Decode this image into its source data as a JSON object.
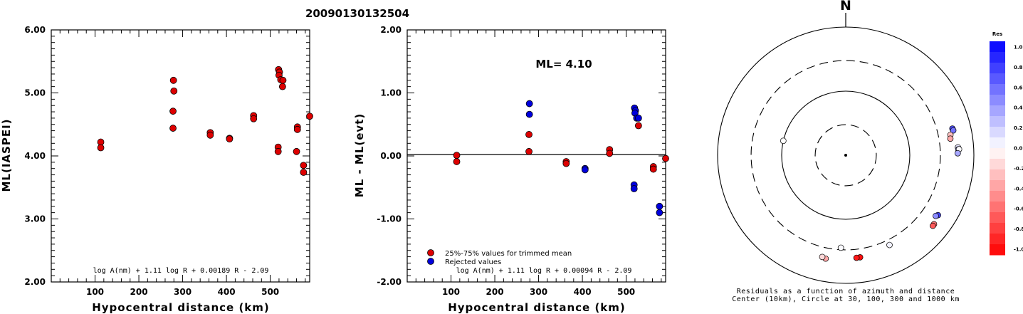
{
  "title": "20090130132504",
  "colors": {
    "red": "#dd0000",
    "blue": "#0000dd",
    "scale_top": "#0000ff",
    "scale_bottom": "#ff0000"
  },
  "chart_data": [
    {
      "type": "scatter",
      "ylabel": "ML(IASPEI)",
      "xlabel": "Hypocentral distance (km)",
      "formula": "log A(nm) + 1.11 log R + 0.00189 R - 2.09",
      "xlim": [
        0,
        590
      ],
      "ylim": [
        2.0,
        6.0
      ],
      "xticks": [
        "100",
        "200",
        "300",
        "400",
        "500"
      ],
      "xtick_values": [
        100,
        200,
        300,
        400,
        500
      ],
      "yticks": [
        "2.00",
        "3.00",
        "4.00",
        "5.00",
        "6.00"
      ],
      "ytick_values": [
        2.0,
        3.0,
        4.0,
        5.0,
        6.0
      ],
      "points": [
        {
          "x": 113,
          "y": 4.22,
          "c": "red"
        },
        {
          "x": 113,
          "y": 4.13,
          "c": "red"
        },
        {
          "x": 279,
          "y": 5.2,
          "c": "red"
        },
        {
          "x": 280,
          "y": 5.03,
          "c": "red"
        },
        {
          "x": 278,
          "y": 4.71,
          "c": "red"
        },
        {
          "x": 278,
          "y": 4.44,
          "c": "red"
        },
        {
          "x": 363,
          "y": 4.37,
          "c": "red"
        },
        {
          "x": 363,
          "y": 4.33,
          "c": "red"
        },
        {
          "x": 407,
          "y": 4.28,
          "c": "red"
        },
        {
          "x": 407,
          "y": 4.27,
          "c": "red"
        },
        {
          "x": 462,
          "y": 4.64,
          "c": "red"
        },
        {
          "x": 462,
          "y": 4.59,
          "c": "red"
        },
        {
          "x": 519,
          "y": 5.37,
          "c": "red"
        },
        {
          "x": 521,
          "y": 5.33,
          "c": "red"
        },
        {
          "x": 520,
          "y": 5.28,
          "c": "red"
        },
        {
          "x": 524,
          "y": 5.21,
          "c": "red"
        },
        {
          "x": 529,
          "y": 5.2,
          "c": "red"
        },
        {
          "x": 528,
          "y": 5.1,
          "c": "red"
        },
        {
          "x": 518,
          "y": 4.14,
          "c": "red"
        },
        {
          "x": 518,
          "y": 4.07,
          "c": "red"
        },
        {
          "x": 562,
          "y": 4.46,
          "c": "red"
        },
        {
          "x": 562,
          "y": 4.42,
          "c": "red"
        },
        {
          "x": 560,
          "y": 4.07,
          "c": "red"
        },
        {
          "x": 576,
          "y": 3.85,
          "c": "red"
        },
        {
          "x": 576,
          "y": 3.74,
          "c": "red"
        },
        {
          "x": 590,
          "y": 4.63,
          "c": "red"
        }
      ]
    },
    {
      "type": "scatter",
      "ylabel": "ML - ML(evt)",
      "xlabel": "Hypocentral distance (km)",
      "formula": "log A(nm) + 1.11 log R + 0.00094 R - 2.09",
      "annotation": "ML= 4.10",
      "legend": [
        {
          "label": "25%-75% values for trimmed mean",
          "c": "red"
        },
        {
          "label": "Rejected values",
          "c": "blue"
        }
      ],
      "xlim": [
        0,
        590
      ],
      "ylim": [
        -2.0,
        2.0
      ],
      "xticks": [
        "100",
        "200",
        "300",
        "400",
        "500"
      ],
      "xtick_values": [
        100,
        200,
        300,
        400,
        500
      ],
      "yticks": [
        "-2.00",
        "-1.00",
        "0.00",
        "1.00",
        "2.00"
      ],
      "ytick_values": [
        -2.0,
        -1.0,
        0.0,
        1.0,
        2.0
      ],
      "points": [
        {
          "x": 113,
          "y": 0.01,
          "c": "red"
        },
        {
          "x": 113,
          "y": -0.09,
          "c": "red"
        },
        {
          "x": 279,
          "y": 0.83,
          "c": "blue"
        },
        {
          "x": 279,
          "y": 0.66,
          "c": "blue"
        },
        {
          "x": 278,
          "y": 0.34,
          "c": "red"
        },
        {
          "x": 278,
          "y": 0.07,
          "c": "red"
        },
        {
          "x": 363,
          "y": -0.09,
          "c": "red"
        },
        {
          "x": 363,
          "y": -0.12,
          "c": "red"
        },
        {
          "x": 406,
          "y": -0.2,
          "c": "blue"
        },
        {
          "x": 406,
          "y": -0.22,
          "c": "blue"
        },
        {
          "x": 462,
          "y": 0.1,
          "c": "red"
        },
        {
          "x": 462,
          "y": 0.04,
          "c": "red"
        },
        {
          "x": 519,
          "y": 0.76,
          "c": "blue"
        },
        {
          "x": 521,
          "y": 0.72,
          "c": "blue"
        },
        {
          "x": 520,
          "y": 0.68,
          "c": "blue"
        },
        {
          "x": 524,
          "y": 0.6,
          "c": "blue"
        },
        {
          "x": 528,
          "y": 0.6,
          "c": "blue"
        },
        {
          "x": 528,
          "y": 0.48,
          "c": "red"
        },
        {
          "x": 518,
          "y": -0.46,
          "c": "blue"
        },
        {
          "x": 518,
          "y": -0.52,
          "c": "blue"
        },
        {
          "x": 562,
          "y": -0.17,
          "c": "red"
        },
        {
          "x": 562,
          "y": -0.21,
          "c": "red"
        },
        {
          "x": 576,
          "y": -0.8,
          "c": "blue"
        },
        {
          "x": 576,
          "y": -0.9,
          "c": "blue"
        },
        {
          "x": 590,
          "y": -0.04,
          "c": "red"
        }
      ]
    },
    {
      "type": "polar-scatter",
      "north_label": "N",
      "caption": [
        "Residuals as a function of azimuth and distance",
        "Center (10km), Circle at 30, 100, 300 and 1000 km"
      ],
      "rings": [
        {
          "km": 30,
          "style": "dashed"
        },
        {
          "km": 100,
          "style": "solid"
        },
        {
          "km": 300,
          "style": "dashed"
        },
        {
          "km": 1000,
          "style": "solid"
        }
      ],
      "colorbar": {
        "title": "Res",
        "labels": [
          "1.0",
          "0.8",
          "0.6",
          "0.4",
          "0.2",
          "0.0",
          "-0.2",
          "-0.4",
          "-0.6",
          "-0.8",
          "-1.0"
        ],
        "range": [
          -1.0,
          1.0
        ]
      },
      "points": [
        {
          "az": 283,
          "dist": 100,
          "res": 0.0
        },
        {
          "az": 76,
          "dist": 520,
          "res": 0.7
        },
        {
          "az": 77,
          "dist": 528,
          "res": 0.55
        },
        {
          "az": 79,
          "dist": 462,
          "res": -0.25
        },
        {
          "az": 81,
          "dist": 450,
          "res": -0.35
        },
        {
          "az": 86,
          "dist": 570,
          "res": 0.1
        },
        {
          "az": 87,
          "dist": 575,
          "res": 0.45
        },
        {
          "az": 87,
          "dist": 590,
          "res": 0.02
        },
        {
          "az": 89,
          "dist": 560,
          "res": 0.35
        },
        {
          "az": 123,
          "dist": 520,
          "res": 0.75
        },
        {
          "az": 124,
          "dist": 495,
          "res": 0.45
        },
        {
          "az": 128,
          "dist": 560,
          "res": -0.55
        },
        {
          "az": 129,
          "dist": 562,
          "res": -0.65
        },
        {
          "az": 154,
          "dist": 362,
          "res": 0.05
        },
        {
          "az": 172,
          "dist": 406,
          "res": -0.95
        },
        {
          "az": 174,
          "dist": 407,
          "res": -0.9
        },
        {
          "az": 183,
          "dist": 279,
          "res": 0.02
        },
        {
          "az": 191,
          "dist": 440,
          "res": -0.35
        },
        {
          "az": 193,
          "dist": 426,
          "res": -0.15
        }
      ]
    }
  ]
}
